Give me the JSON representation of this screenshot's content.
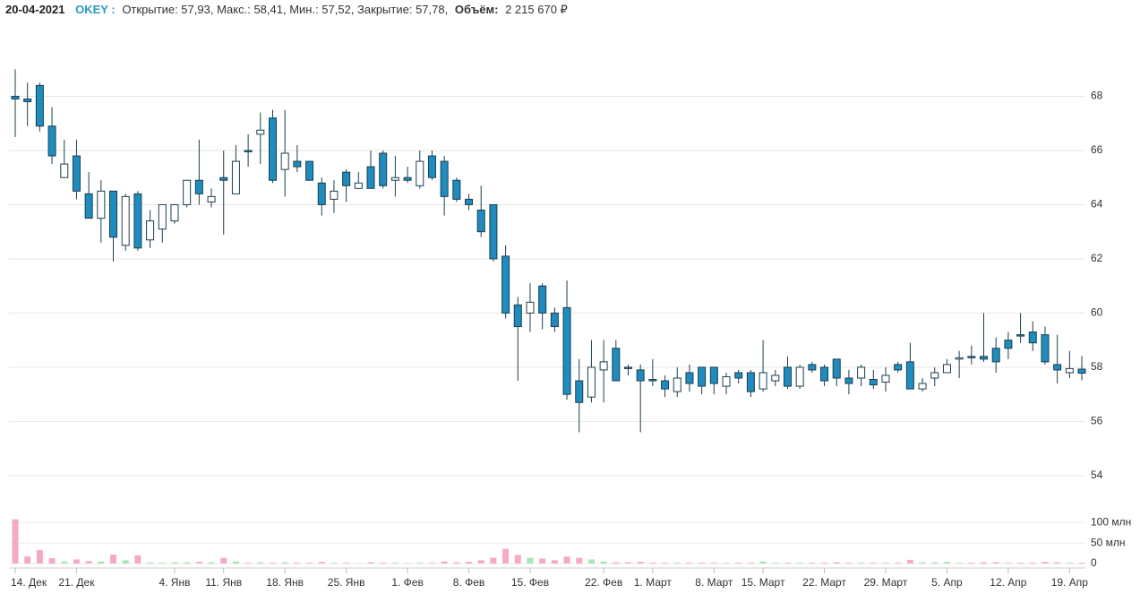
{
  "header": {
    "date": "20-04-2021",
    "ticker": "OKEY :",
    "prices": "Открытие: 57,93, Макс.: 58,41, Мин.: 57,52, Закрытие: 57,78,",
    "volume_label": "Объём:",
    "volume_value": "2 215 670 ₽"
  },
  "chart_data": {
    "type": "candlestick",
    "categories": [
      "14. Дек",
      null,
      null,
      null,
      null,
      "21. Дек",
      null,
      null,
      null,
      null,
      null,
      null,
      null,
      "4. Янв",
      null,
      null,
      null,
      "11. Янв",
      null,
      null,
      null,
      null,
      "18. Янв",
      null,
      null,
      null,
      null,
      "25. Янв",
      null,
      null,
      null,
      null,
      "1. Фев",
      null,
      null,
      null,
      null,
      "8. Фев",
      null,
      null,
      null,
      null,
      "15. Фев",
      null,
      null,
      null,
      null,
      null,
      "22. Фев",
      null,
      null,
      null,
      "1. Март",
      null,
      null,
      null,
      null,
      "8. Март",
      null,
      null,
      null,
      "15. Март",
      null,
      null,
      null,
      null,
      "22. Март",
      null,
      null,
      null,
      null,
      "29. Март",
      null,
      null,
      null,
      null,
      "5. Апр",
      null,
      null,
      null,
      null,
      "12. Апр",
      null,
      null,
      null,
      null,
      "19. Апр",
      null
    ],
    "open": [
      68.0,
      67.9,
      68.4,
      66.9,
      65.0,
      65.8,
      64.4,
      63.5,
      64.5,
      62.5,
      64.4,
      62.7,
      63.1,
      63.4,
      64.0,
      64.9,
      64.1,
      65.0,
      64.4,
      66.0,
      66.6,
      67.2,
      65.3,
      65.6,
      65.6,
      64.8,
      64.2,
      65.2,
      64.6,
      65.4,
      65.9,
      64.9,
      65.0,
      64.7,
      65.8,
      65.6,
      64.9,
      64.2,
      63.8,
      64.0,
      62.1,
      60.3,
      60.0,
      61.0,
      60.0,
      60.2,
      57.5,
      56.9,
      57.9,
      58.7,
      58.0,
      57.9,
      57.55,
      57.5,
      57.1,
      57.8,
      58.0,
      58.0,
      57.3,
      57.8,
      57.8,
      57.2,
      57.5,
      58.0,
      57.3,
      58.1,
      58.0,
      58.3,
      57.6,
      57.6,
      57.55,
      57.45,
      58.1,
      58.2,
      57.2,
      57.6,
      57.8,
      58.3,
      58.4,
      58.4,
      58.7,
      59.0,
      59.2,
      59.3,
      59.2,
      58.1,
      57.8,
      57.93
    ],
    "high": [
      69.0,
      68.5,
      68.5,
      67.6,
      66.4,
      66.4,
      65.2,
      64.9,
      64.5,
      64.4,
      64.5,
      63.8,
      64.0,
      64.0,
      64.9,
      66.4,
      64.6,
      66.0,
      66.2,
      66.6,
      67.4,
      67.5,
      67.5,
      66.2,
      65.6,
      65.0,
      64.9,
      65.3,
      65.2,
      66.0,
      66.0,
      65.8,
      65.4,
      66.0,
      66.0,
      65.8,
      65.0,
      64.4,
      64.7,
      64.0,
      62.5,
      60.6,
      61.1,
      61.1,
      60.2,
      61.2,
      58.3,
      59.0,
      59.0,
      59.0,
      58.1,
      58.1,
      58.3,
      57.7,
      58.0,
      58.1,
      58.0,
      58.0,
      57.8,
      57.9,
      57.9,
      59.0,
      57.9,
      58.4,
      58.1,
      58.2,
      58.1,
      58.3,
      57.9,
      58.1,
      57.9,
      58.0,
      58.2,
      58.9,
      57.6,
      58.0,
      58.3,
      58.6,
      58.8,
      60.0,
      59.1,
      59.3,
      60.0,
      59.7,
      59.5,
      59.2,
      58.6,
      58.41
    ],
    "low": [
      66.5,
      66.9,
      66.7,
      65.5,
      65.0,
      64.2,
      63.5,
      62.6,
      61.9,
      62.3,
      62.3,
      62.4,
      62.6,
      63.3,
      63.9,
      64.0,
      63.9,
      62.9,
      64.4,
      65.4,
      65.5,
      64.8,
      64.3,
      65.2,
      64.9,
      63.6,
      63.7,
      64.1,
      64.6,
      64.6,
      64.6,
      64.3,
      64.8,
      64.6,
      64.9,
      63.6,
      64.1,
      63.8,
      62.8,
      61.9,
      59.8,
      57.5,
      59.3,
      59.4,
      59.3,
      56.8,
      55.6,
      56.7,
      56.7,
      57.5,
      57.7,
      55.6,
      57.3,
      56.9,
      56.9,
      57.1,
      57.0,
      57.0,
      57.0,
      57.4,
      56.9,
      57.1,
      57.3,
      57.2,
      57.2,
      57.8,
      57.3,
      57.3,
      57.0,
      57.3,
      57.2,
      57.1,
      57.8,
      57.2,
      57.1,
      57.3,
      57.8,
      57.6,
      58.1,
      58.2,
      57.8,
      58.3,
      58.9,
      58.6,
      58.1,
      57.4,
      57.6,
      57.52
    ],
    "close": [
      67.9,
      67.8,
      66.9,
      65.8,
      65.5,
      64.5,
      63.5,
      64.5,
      62.8,
      64.3,
      62.4,
      63.4,
      64.0,
      64.0,
      64.9,
      64.4,
      64.3,
      64.9,
      65.6,
      65.95,
      66.75,
      64.9,
      65.9,
      65.4,
      64.9,
      64.0,
      64.5,
      64.7,
      64.8,
      64.6,
      64.7,
      65.0,
      64.9,
      65.6,
      65.0,
      64.3,
      64.2,
      64.0,
      63.0,
      62.0,
      60.0,
      59.5,
      60.4,
      60.0,
      59.5,
      57.0,
      56.7,
      58.0,
      58.2,
      57.5,
      57.95,
      57.5,
      57.5,
      57.2,
      57.6,
      57.4,
      57.3,
      57.4,
      57.65,
      57.6,
      57.1,
      57.8,
      57.7,
      57.3,
      58.0,
      57.9,
      57.5,
      57.6,
      57.4,
      58.0,
      57.35,
      57.7,
      57.9,
      57.2,
      57.4,
      57.8,
      58.1,
      58.35,
      58.35,
      58.3,
      58.2,
      58.7,
      59.15,
      58.9,
      58.2,
      57.9,
      57.95,
      57.78
    ],
    "up_color": "#ffffff",
    "down_color": "#1e8cbe",
    "edge_color": "#1d3e4f",
    "ylim": [
      53.5,
      70
    ],
    "yticks": [
      54,
      56,
      58,
      60,
      62,
      64,
      66,
      68
    ],
    "grid": true,
    "volume": {
      "type": "bar",
      "values": [
        108,
        17,
        33,
        13,
        5,
        10,
        6,
        5,
        22,
        8,
        20,
        3,
        2,
        3,
        3,
        4,
        3,
        14,
        5,
        2,
        3,
        2,
        3,
        2,
        2,
        4,
        2,
        2,
        1,
        3,
        2,
        2,
        1,
        2,
        2,
        5,
        3,
        4,
        8,
        14,
        36,
        21,
        14,
        12,
        8,
        17,
        14,
        10,
        5,
        3,
        3,
        4,
        2,
        2,
        2,
        2,
        2,
        2,
        2,
        2,
        2,
        5,
        2,
        2,
        2,
        2,
        2,
        3,
        2,
        2,
        2,
        2,
        2,
        9,
        3,
        3,
        4,
        2,
        2,
        3,
        3,
        2,
        2,
        2,
        4,
        3,
        2,
        2
      ],
      "up_color": "#a8e4b4",
      "down_color": "#f5a9c6",
      "ylim": [
        0,
        140
      ],
      "yticks": [
        {
          "value": 0,
          "label": "0"
        },
        {
          "value": 50,
          "label": "50 млн"
        },
        {
          "value": 100,
          "label": "100 млн"
        }
      ]
    }
  }
}
